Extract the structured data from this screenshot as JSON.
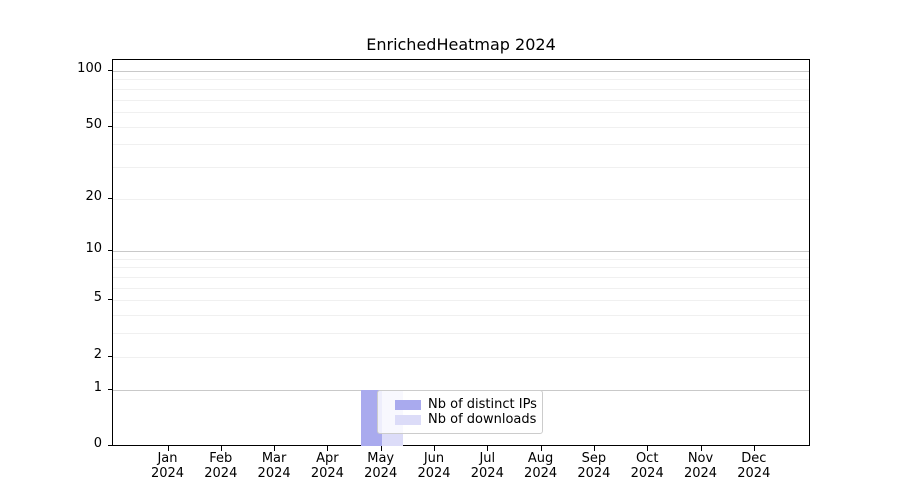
{
  "chart_data": {
    "type": "bar",
    "title": "EnrichedHeatmap 2024",
    "categories": [
      "Jan",
      "Feb",
      "Mar",
      "Apr",
      "May",
      "Jun",
      "Jul",
      "Aug",
      "Sep",
      "Oct",
      "Nov",
      "Dec"
    ],
    "year_label": "2024",
    "series": [
      {
        "name": "Nb of distinct IPs",
        "color": "#a9aaee",
        "values": [
          0,
          0,
          0,
          0,
          1,
          0,
          0,
          0,
          0,
          0,
          0,
          0
        ]
      },
      {
        "name": "Nb of downloads",
        "color": "#dcdcf8",
        "values": [
          0,
          0,
          0,
          0,
          1,
          0,
          0,
          0,
          0,
          0,
          0,
          0
        ]
      }
    ],
    "xlabel": "",
    "ylabel": "",
    "yscale": "log1p",
    "ylim": [
      0,
      115
    ],
    "ytick_labels": [
      100,
      50,
      20,
      10,
      5,
      2,
      1,
      0
    ],
    "grid_major": [
      1,
      10,
      100
    ],
    "grid_minor": [
      2,
      3,
      4,
      5,
      6,
      7,
      8,
      9,
      20,
      30,
      40,
      50,
      60,
      70,
      80,
      90
    ],
    "grid": true,
    "legend_position": "inside lower-center, overlapping May bars"
  }
}
